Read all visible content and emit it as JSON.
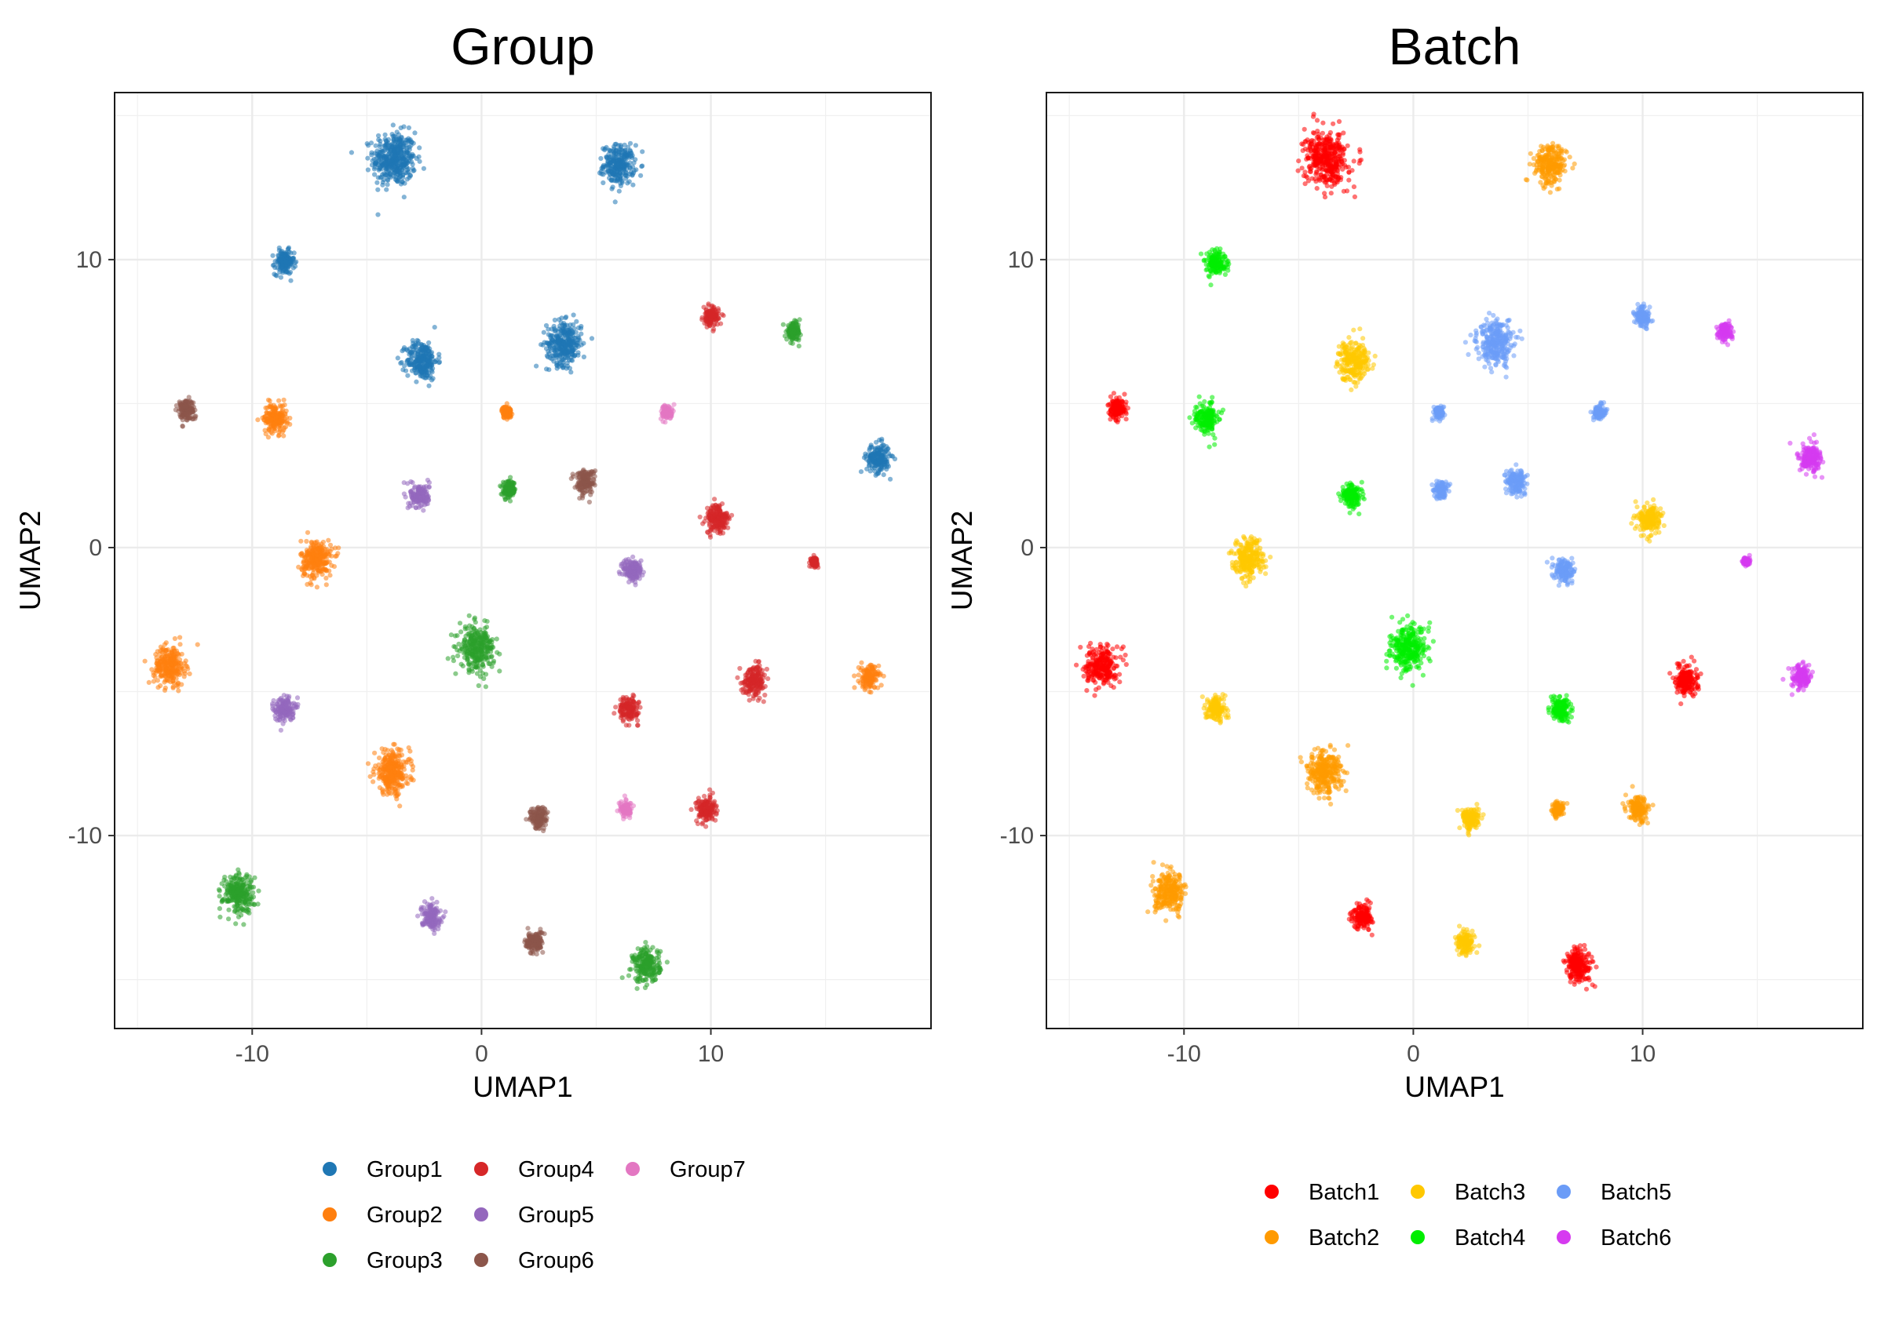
{
  "chart_data": [
    {
      "type": "scatter",
      "title": "Group",
      "xlabel": "UMAP1",
      "ylabel": "UMAP2",
      "xlim": [
        -16,
        19.6
      ],
      "ylim": [
        -16.7,
        15.8
      ],
      "xticks": [
        -10,
        0,
        10
      ],
      "yticks": [
        -10,
        0,
        10
      ],
      "grid": true,
      "legend_position": "bottom",
      "legend_cols": 3,
      "series": [
        {
          "name": "Group1",
          "color": "#1f77b4",
          "clusters": [
            {
              "x": -3.8,
              "y": 13.5,
              "r": 1.1
            },
            {
              "x": 6.0,
              "y": 13.3,
              "r": 0.8
            },
            {
              "x": -8.6,
              "y": 9.9,
              "r": 0.5
            },
            {
              "x": -2.6,
              "y": 6.5,
              "r": 0.8
            },
            {
              "x": 3.6,
              "y": 7.1,
              "r": 0.9
            },
            {
              "x": 17.3,
              "y": 3.1,
              "r": 0.6
            }
          ]
        },
        {
          "name": "Group2",
          "color": "#ff7f0e",
          "clusters": [
            {
              "x": -9.0,
              "y": 4.5,
              "r": 0.6
            },
            {
              "x": 1.1,
              "y": 4.7,
              "r": 0.25
            },
            {
              "x": -7.2,
              "y": -0.4,
              "r": 0.8
            },
            {
              "x": -13.6,
              "y": -4.1,
              "r": 0.8
            },
            {
              "x": 16.9,
              "y": -4.5,
              "r": 0.5
            },
            {
              "x": -3.9,
              "y": -7.8,
              "r": 0.9
            }
          ]
        },
        {
          "name": "Group3",
          "color": "#2ca02c",
          "clusters": [
            {
              "x": 13.6,
              "y": 7.5,
              "r": 0.35
            },
            {
              "x": 1.2,
              "y": 2.0,
              "r": 0.35
            },
            {
              "x": -0.2,
              "y": -3.5,
              "r": 0.9
            },
            {
              "x": -10.6,
              "y": -12.0,
              "r": 0.8
            },
            {
              "x": 7.2,
              "y": -14.5,
              "r": 0.7
            }
          ]
        },
        {
          "name": "Group4",
          "color": "#d62728",
          "clusters": [
            {
              "x": 10.0,
              "y": 8.0,
              "r": 0.4
            },
            {
              "x": 10.3,
              "y": 1.0,
              "r": 0.6
            },
            {
              "x": 14.5,
              "y": -0.5,
              "r": 0.18
            },
            {
              "x": 11.9,
              "y": -4.6,
              "r": 0.6
            },
            {
              "x": 6.4,
              "y": -5.6,
              "r": 0.5
            },
            {
              "x": 9.8,
              "y": -9.1,
              "r": 0.5
            }
          ]
        },
        {
          "name": "Group5",
          "color": "#9467bd",
          "clusters": [
            {
              "x": -2.7,
              "y": 1.8,
              "r": 0.5
            },
            {
              "x": 6.6,
              "y": -0.8,
              "r": 0.5
            },
            {
              "x": -8.6,
              "y": -5.6,
              "r": 0.5
            },
            {
              "x": -2.2,
              "y": -12.8,
              "r": 0.5
            }
          ]
        },
        {
          "name": "Group6",
          "color": "#8c564b",
          "clusters": [
            {
              "x": -12.9,
              "y": 4.8,
              "r": 0.45
            },
            {
              "x": 4.5,
              "y": 2.3,
              "r": 0.5
            },
            {
              "x": 2.5,
              "y": -9.4,
              "r": 0.45
            },
            {
              "x": 2.3,
              "y": -13.7,
              "r": 0.45
            }
          ]
        },
        {
          "name": "Group7",
          "color": "#e377c2",
          "clusters": [
            {
              "x": 8.1,
              "y": 4.7,
              "r": 0.3
            },
            {
              "x": 6.3,
              "y": -9.1,
              "r": 0.3
            }
          ]
        }
      ]
    },
    {
      "type": "scatter",
      "title": "Batch",
      "xlabel": "UMAP1",
      "ylabel": "UMAP2",
      "xlim": [
        -16,
        19.6
      ],
      "ylim": [
        -16.7,
        15.8
      ],
      "xticks": [
        -10,
        0,
        10
      ],
      "yticks": [
        -10,
        0,
        10
      ],
      "grid": true,
      "legend_position": "bottom",
      "legend_cols": 3,
      "series": [
        {
          "name": "Batch1",
          "color": "#ff0000",
          "clusters": [
            {
              "x": -3.8,
              "y": 13.5,
              "r": 1.1
            },
            {
              "x": -12.9,
              "y": 4.8,
              "r": 0.45
            },
            {
              "x": -13.6,
              "y": -4.1,
              "r": 0.8
            },
            {
              "x": 11.9,
              "y": -4.6,
              "r": 0.6
            },
            {
              "x": -2.2,
              "y": -12.8,
              "r": 0.5
            },
            {
              "x": 7.2,
              "y": -14.5,
              "r": 0.7
            }
          ]
        },
        {
          "name": "Batch2",
          "color": "#ff9a00",
          "clusters": [
            {
              "x": 6.0,
              "y": 13.3,
              "r": 0.8
            },
            {
              "x": -3.9,
              "y": -7.8,
              "r": 0.9
            },
            {
              "x": 6.3,
              "y": -9.1,
              "r": 0.3
            },
            {
              "x": 9.8,
              "y": -9.1,
              "r": 0.5
            },
            {
              "x": -10.6,
              "y": -12.0,
              "r": 0.8
            }
          ]
        },
        {
          "name": "Batch3",
          "color": "#ffc800",
          "clusters": [
            {
              "x": -2.6,
              "y": 6.5,
              "r": 0.8
            },
            {
              "x": -7.2,
              "y": -0.4,
              "r": 0.8
            },
            {
              "x": 10.3,
              "y": 1.0,
              "r": 0.6
            },
            {
              "x": -8.6,
              "y": -5.6,
              "r": 0.5
            },
            {
              "x": 2.5,
              "y": -9.4,
              "r": 0.45
            },
            {
              "x": 2.3,
              "y": -13.7,
              "r": 0.45
            }
          ]
        },
        {
          "name": "Batch4",
          "color": "#00ee00",
          "clusters": [
            {
              "x": -8.6,
              "y": 9.9,
              "r": 0.5
            },
            {
              "x": -9.0,
              "y": 4.5,
              "r": 0.6
            },
            {
              "x": -2.7,
              "y": 1.8,
              "r": 0.5
            },
            {
              "x": -0.2,
              "y": -3.5,
              "r": 0.9
            },
            {
              "x": 6.4,
              "y": -5.6,
              "r": 0.5
            }
          ]
        },
        {
          "name": "Batch5",
          "color": "#6b9cf7",
          "clusters": [
            {
              "x": 3.6,
              "y": 7.1,
              "r": 0.9
            },
            {
              "x": 10.0,
              "y": 8.0,
              "r": 0.4
            },
            {
              "x": 1.1,
              "y": 4.7,
              "r": 0.25
            },
            {
              "x": 8.1,
              "y": 4.7,
              "r": 0.3
            },
            {
              "x": 1.2,
              "y": 2.0,
              "r": 0.35
            },
            {
              "x": 4.5,
              "y": 2.3,
              "r": 0.5
            },
            {
              "x": 6.6,
              "y": -0.8,
              "r": 0.5
            }
          ]
        },
        {
          "name": "Batch6",
          "color": "#d63af0",
          "clusters": [
            {
              "x": 13.6,
              "y": 7.5,
              "r": 0.35
            },
            {
              "x": 17.3,
              "y": 3.1,
              "r": 0.6
            },
            {
              "x": 14.5,
              "y": -0.5,
              "r": 0.18
            },
            {
              "x": 16.9,
              "y": -4.5,
              "r": 0.5
            }
          ]
        }
      ]
    }
  ]
}
